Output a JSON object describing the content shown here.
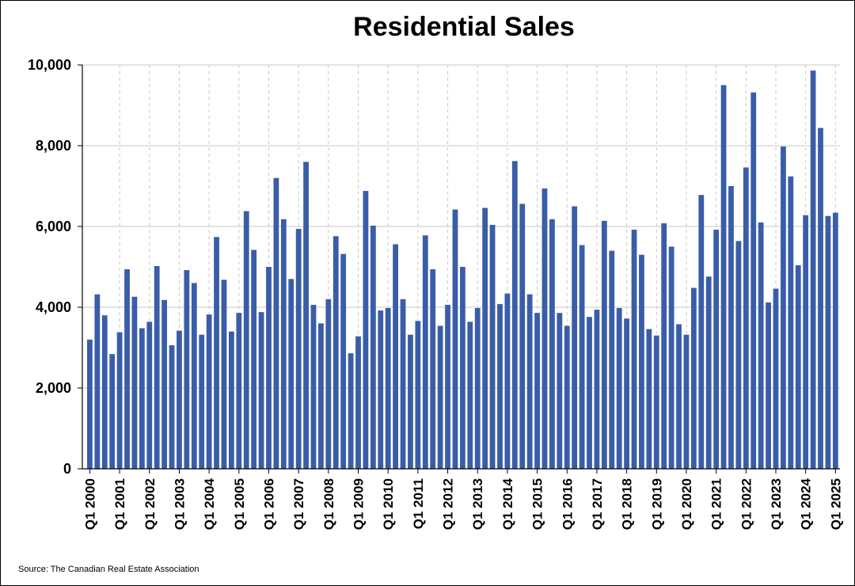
{
  "chart_data": {
    "type": "bar",
    "title": "Residential Sales",
    "source": "Source: The Canadian Real Estate Association",
    "xlabel": "",
    "ylabel": "",
    "ylim": [
      0,
      10000
    ],
    "yticks": [
      0,
      2000,
      4000,
      6000,
      8000,
      10000
    ],
    "ytick_labels": [
      "0",
      "2,000",
      "4,000",
      "6,000",
      "8,000",
      "10,000"
    ],
    "grid": {
      "horizontal": true,
      "vertical_dashed_at_years": true
    },
    "legend": "none",
    "bar_color": "#3A5DA8",
    "categories": [
      "Q1 2000",
      "Q2 2000",
      "Q3 2000",
      "Q4 2000",
      "Q1 2001",
      "Q2 2001",
      "Q3 2001",
      "Q4 2001",
      "Q1 2002",
      "Q2 2002",
      "Q3 2002",
      "Q4 2002",
      "Q1 2003",
      "Q2 2003",
      "Q3 2003",
      "Q4 2003",
      "Q1 2004",
      "Q2 2004",
      "Q3 2004",
      "Q4 2004",
      "Q1 2005",
      "Q2 2005",
      "Q3 2005",
      "Q4 2005",
      "Q1 2006",
      "Q2 2006",
      "Q3 2006",
      "Q4 2006",
      "Q1 2007",
      "Q2 2007",
      "Q3 2007",
      "Q4 2007",
      "Q1 2008",
      "Q2 2008",
      "Q3 2008",
      "Q4 2008",
      "Q1 2009",
      "Q2 2009",
      "Q3 2009",
      "Q4 2009",
      "Q1 2010",
      "Q2 2010",
      "Q3 2010",
      "Q4 2010",
      "Q1 2011",
      "Q2 2011",
      "Q3 2011",
      "Q4 2011",
      "Q1 2012",
      "Q2 2012",
      "Q3 2012",
      "Q4 2012",
      "Q1 2013",
      "Q2 2013",
      "Q3 2013",
      "Q4 2013",
      "Q1 2014",
      "Q2 2014",
      "Q3 2014",
      "Q4 2014",
      "Q1 2015",
      "Q2 2015",
      "Q3 2015",
      "Q4 2015",
      "Q1 2016",
      "Q2 2016",
      "Q3 2016",
      "Q4 2016",
      "Q1 2017",
      "Q2 2017",
      "Q3 2017",
      "Q4 2017",
      "Q1 2018",
      "Q2 2018",
      "Q3 2018",
      "Q4 2018",
      "Q1 2019",
      "Q2 2019",
      "Q3 2019",
      "Q4 2019",
      "Q1 2020",
      "Q2 2020",
      "Q3 2020",
      "Q4 2020",
      "Q1 2021",
      "Q2 2021",
      "Q3 2021",
      "Q4 2021",
      "Q1 2022",
      "Q2 2022",
      "Q3 2022",
      "Q4 2022",
      "Q1 2023",
      "Q2 2023",
      "Q3 2023",
      "Q4 2023",
      "Q1 2024",
      "Q2 2024",
      "Q3 2024",
      "Q4 2024",
      "Q1 2025"
    ],
    "xtick_labels": [
      "Q1 2000",
      "Q1 2001",
      "Q1 2002",
      "Q1 2003",
      "Q1 2004",
      "Q1 2005",
      "Q1 2006",
      "Q1 2007",
      "Q1 2008",
      "Q1 2009",
      "Q1 2010",
      "Q1 2011",
      "Q1 2012",
      "Q1 2013",
      "Q1 2014",
      "Q1 2015",
      "Q1 2016",
      "Q1 2017",
      "Q1 2018",
      "Q1 2019",
      "Q1 2020",
      "Q1 2021",
      "Q1 2022",
      "Q1 2023",
      "Q1 2024",
      "Q1 2025"
    ],
    "values": [
      3200,
      4320,
      3800,
      2840,
      3380,
      4940,
      4260,
      3480,
      3640,
      5020,
      4180,
      3060,
      3420,
      4920,
      4600,
      3320,
      3820,
      5740,
      4680,
      3400,
      3860,
      6380,
      5420,
      3880,
      5000,
      7200,
      6180,
      4700,
      5940,
      7600,
      4060,
      3600,
      4200,
      5760,
      5320,
      2860,
      3280,
      6880,
      6020,
      3920,
      3980,
      5560,
      4200,
      3320,
      3660,
      5780,
      4940,
      3540,
      4060,
      6420,
      5000,
      3640,
      3980,
      6460,
      6040,
      4080,
      4340,
      7620,
      6560,
      4320,
      3860,
      6940,
      6180,
      3860,
      3540,
      6500,
      5540,
      3760,
      3940,
      6140,
      5400,
      3980,
      3720,
      5920,
      5300,
      3460,
      3300,
      6080,
      5500,
      3580,
      3320,
      4480,
      6780,
      4760,
      5920,
      9500,
      7000,
      5640,
      7460,
      9320,
      6100,
      4120,
      4460,
      7980,
      7240,
      5040,
      6280,
      9860,
      8440,
      6260,
      6340
    ]
  }
}
